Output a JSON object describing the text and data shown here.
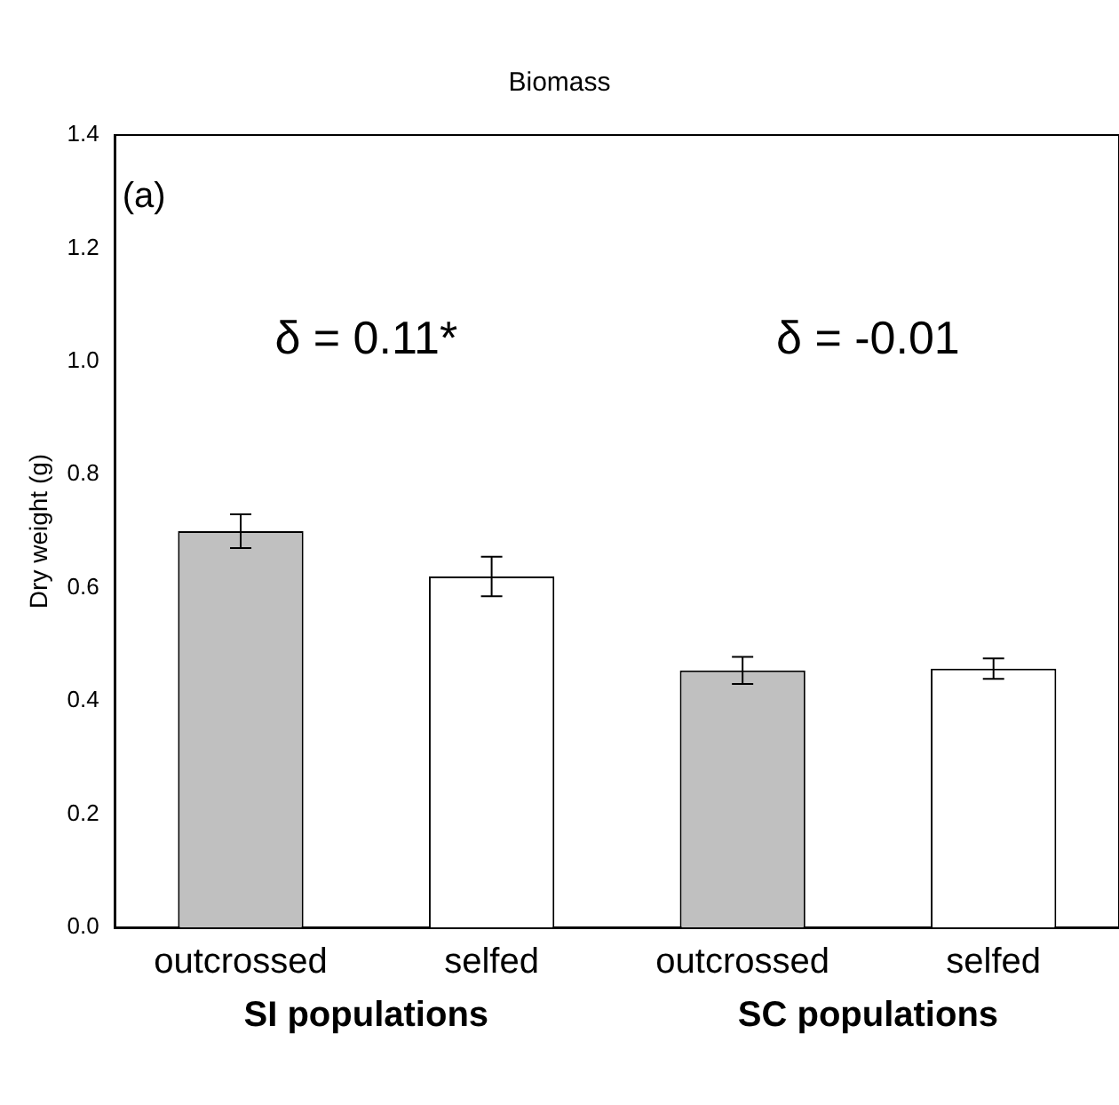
{
  "chart_data": {
    "type": "bar",
    "title": "Biomass",
    "ylabel": "Dry weight (g)",
    "categories": [
      "outcrossed",
      "selfed",
      "outcrossed",
      "selfed"
    ],
    "values": [
      0.7,
      0.62,
      0.454,
      0.457
    ],
    "colors": [
      "#c0c0c0",
      "#ffffff",
      "#c0c0c0",
      "#ffffff"
    ],
    "errors": [
      0.03,
      0.035,
      0.024,
      0.018
    ],
    "ylim": [
      0,
      1.4
    ],
    "yticks": [
      {
        "value": 0,
        "label": "0.0"
      },
      {
        "value": 0.2,
        "label": "0.2"
      },
      {
        "value": 0.4,
        "label": "0.4"
      },
      {
        "value": 0.6,
        "label": "0.6"
      },
      {
        "value": 0.8,
        "label": "0.8"
      },
      {
        "value": 1,
        "label": "1.0"
      },
      {
        "value": 1.2,
        "label": "1.2"
      },
      {
        "value": 1.4,
        "label": "1.4"
      }
    ],
    "annotations": [
      "(a)",
      "δ = 0.11*",
      "δ = -0.01",
      "SI populations",
      "SC populations"
    ],
    "grid": false,
    "legend": false
  }
}
